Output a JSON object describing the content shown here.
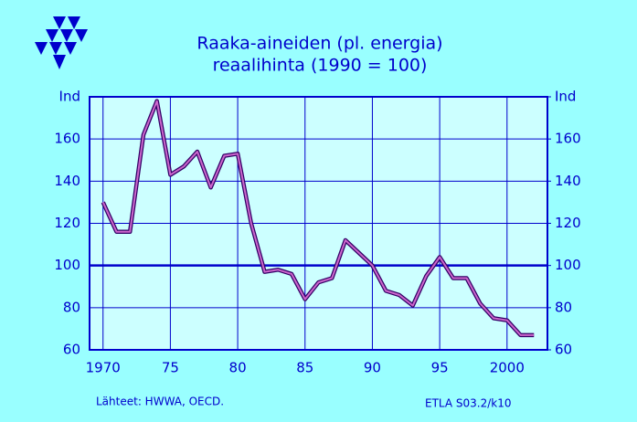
{
  "chart_data": {
    "type": "line",
    "title": [
      "Raaka-aineiden  (pl.  energia)",
      "reaalihinta  (1990 = 100)"
    ],
    "x": [
      1970,
      1971,
      1972,
      1973,
      1974,
      1975,
      1976,
      1977,
      1978,
      1979,
      1980,
      1981,
      1982,
      1983,
      1984,
      1985,
      1986,
      1987,
      1988,
      1989,
      1990,
      1991,
      1992,
      1993,
      1994,
      1995,
      1996,
      1997,
      1998,
      1999,
      2000,
      2001,
      2002
    ],
    "series": [
      {
        "color": "#cc66cc",
        "values": [
          130,
          116,
          116,
          162,
          178,
          143,
          147,
          154,
          137,
          152,
          153,
          120,
          97,
          98,
          96,
          84,
          92,
          94,
          112,
          106,
          100,
          88,
          86,
          81,
          95,
          104,
          94,
          94,
          82,
          75,
          74,
          67,
          67
        ]
      }
    ],
    "xlim": [
      1969,
      2003
    ],
    "xticks": [
      {
        "value": 1970,
        "label": "1970"
      },
      {
        "value": 1975,
        "label": "75"
      },
      {
        "value": 1980,
        "label": "80"
      },
      {
        "value": 1985,
        "label": "85"
      },
      {
        "value": 1990,
        "label": "90"
      },
      {
        "value": 1995,
        "label": "95"
      },
      {
        "value": 2000,
        "label": "2000"
      }
    ],
    "ylim": [
      60,
      180
    ],
    "yticks": [
      60,
      80,
      100,
      120,
      140,
      160,
      {
        "value": 180,
        "label": "Ind"
      }
    ],
    "y2lim": [
      60,
      180
    ],
    "y2ticks": [
      60,
      80,
      100,
      120,
      140,
      160,
      {
        "value": 180,
        "label": "Ind"
      }
    ],
    "reference_line": 100,
    "grid": true,
    "source": "Lähteet:   HWWA, OECD.",
    "code": "ETLA S03.2/k10"
  }
}
